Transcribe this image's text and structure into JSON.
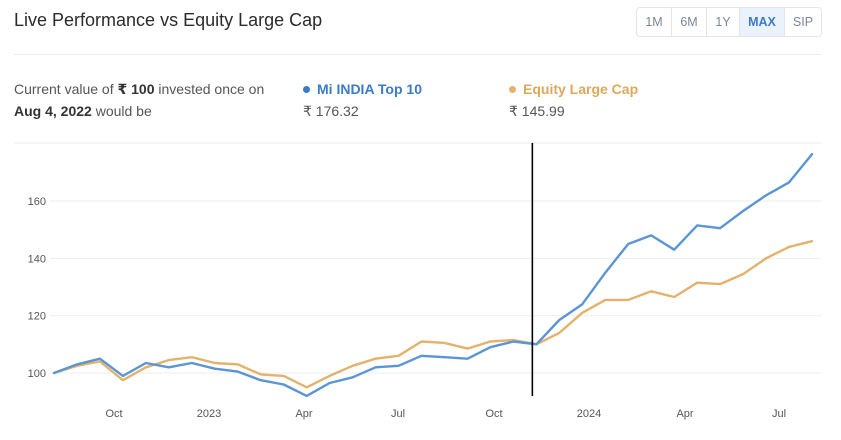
{
  "header": {
    "title": "Live Performance vs Equity Large Cap"
  },
  "range_buttons": [
    {
      "label": "1M",
      "active": false
    },
    {
      "label": "6M",
      "active": false
    },
    {
      "label": "1Y",
      "active": false
    },
    {
      "label": "MAX",
      "active": true
    },
    {
      "label": "SIP",
      "active": false
    }
  ],
  "summary": {
    "prefix": "Current value of ",
    "amount": "₹ 100",
    "middle": " invested once on",
    "date": "Aug 4, 2022",
    "suffix": " would be"
  },
  "legend": [
    {
      "name": "Mi INDIA Top 10",
      "value": "₹ 176.32",
      "color": "#5b95d3"
    },
    {
      "name": "Equity Large Cap",
      "value": "₹ 145.99",
      "color": "#e3b26d"
    }
  ],
  "chart_data": {
    "type": "line",
    "x_tick_labels": [
      "Oct",
      "2023",
      "Apr",
      "Jul",
      "Oct",
      "2024",
      "Apr",
      "Jul"
    ],
    "y_tick_labels": [
      "100",
      "120",
      "140",
      "160"
    ],
    "ylim": [
      90,
      178
    ],
    "grid": true,
    "marker_index": 21,
    "series": [
      {
        "name": "Mi INDIA Top 10",
        "color": "#5b95d3",
        "values": [
          100,
          103,
          105,
          99,
          103.5,
          102,
          103.5,
          101.5,
          100.5,
          97.5,
          96,
          92,
          96.5,
          98.5,
          102,
          102.5,
          106,
          105.5,
          105,
          109,
          111,
          110,
          118.5,
          124,
          135,
          145,
          148,
          143,
          151.5,
          150.5,
          156.5,
          162,
          166.5,
          176.32
        ]
      },
      {
        "name": "Equity Large Cap",
        "color": "#e3b26d",
        "values": [
          100,
          102.5,
          104,
          97.5,
          102,
          104.5,
          105.5,
          103.5,
          103,
          99.5,
          99,
          95,
          99,
          102.5,
          105,
          106,
          111,
          110.5,
          108.5,
          111,
          111.5,
          110,
          114,
          121,
          125.5,
          125.5,
          128.5,
          126.5,
          131.5,
          131,
          134.5,
          140,
          144,
          145.99
        ]
      }
    ]
  }
}
